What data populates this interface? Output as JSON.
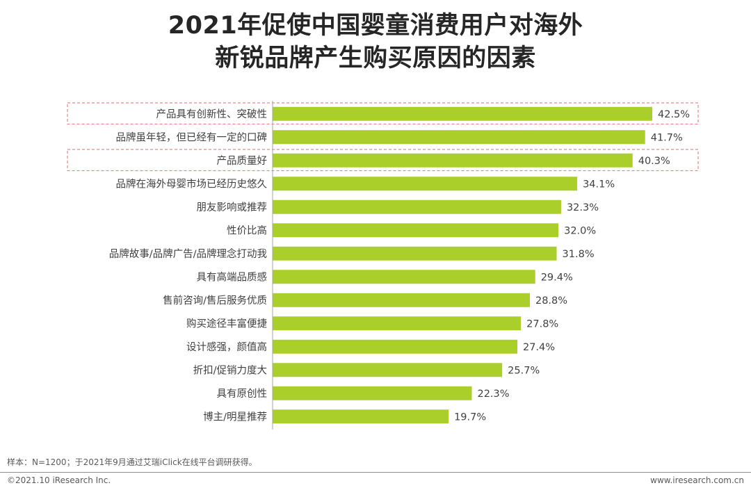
{
  "page": {
    "title_line1": "2021年促使中国婴童消费用户对海外",
    "title_line2": "新锐品牌产生购买原因的因素",
    "note": "样本：N=1200；于2021年9月通过艾瑞iClick在线平台调研获得。",
    "copyright": "©2021.10 iResearch Inc.",
    "website": "www.iresearch.com.cn"
  },
  "colors": {
    "bar": "#AACF2A",
    "highlight_border": "#E8868A",
    "axis": "#A6A6A6",
    "label": "#404040"
  },
  "chart_data": {
    "type": "bar",
    "orientation": "horizontal",
    "title": "2021年促使中国婴童消费用户对海外新锐品牌产生购买原因的因素",
    "categories": [
      "产品具有创新性、突破性",
      "品牌虽年轻，但已经有一定的口碑",
      "产品质量好",
      "品牌在海外母婴市场已经历史悠久",
      "朋友影响或推荐",
      "性价比高",
      "品牌故事/品牌广告/品牌理念打动我",
      "具有高端品质感",
      "售前咨询/售后服务优质",
      "购买途径丰富便捷",
      "设计感强，颜值高",
      "折扣/促销力度大",
      "具有原创性",
      "博主/明星推荐"
    ],
    "values": [
      42.5,
      41.7,
      40.3,
      34.1,
      32.3,
      32.0,
      31.8,
      29.4,
      28.8,
      27.8,
      27.4,
      25.7,
      22.3,
      19.7
    ],
    "value_labels": [
      "42.5%",
      "41.7%",
      "40.3%",
      "34.1%",
      "32.3%",
      "32.0%",
      "31.8%",
      "29.4%",
      "28.8%",
      "27.8%",
      "27.4%",
      "25.7%",
      "22.3%",
      "19.7%"
    ],
    "unit": "%",
    "highlighted_categories": [
      0,
      2
    ],
    "xlim": [
      0,
      42.5
    ],
    "grid": false,
    "legend": "none"
  }
}
